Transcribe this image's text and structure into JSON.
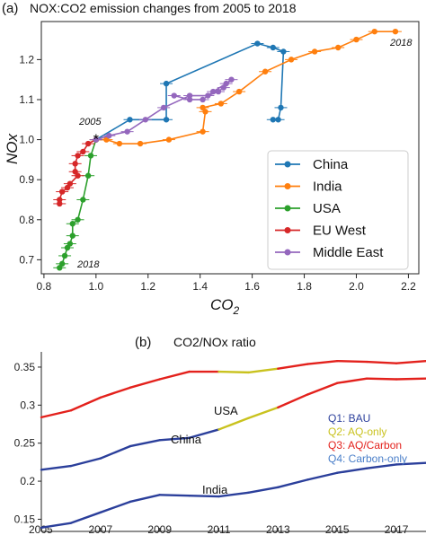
{
  "chart_data": [
    {
      "type": "scatter",
      "panel_label": "(a)",
      "title": "NOX:CO2 emission changes from 2005 to 2018",
      "xlabel": "CO",
      "xlabel_sub": "2",
      "ylabel": "NOx",
      "xlim": [
        0.79,
        2.24
      ],
      "ylim": [
        0.665,
        1.295
      ],
      "xticks": [
        0.8,
        1.0,
        1.2,
        1.4,
        1.6,
        1.8,
        2.0,
        2.2
      ],
      "xtick_labels": [
        "0.8",
        "1.0",
        "1.2",
        "1.4",
        "1.6",
        "1.8",
        "2.0",
        "2.2"
      ],
      "yticks": [
        0.7,
        0.8,
        0.9,
        1.0,
        1.1,
        1.2
      ],
      "ytick_labels": [
        "0.7",
        "0.8",
        "0.9",
        "1.0",
        "1.1",
        "1.2"
      ],
      "annotations": [
        {
          "text": "2005",
          "x": 0.98,
          "y": 1.0
        },
        {
          "text": "2018",
          "x": 2.15,
          "y": 1.27
        },
        {
          "text": "2018",
          "x": 0.86,
          "y": 0.68
        }
      ],
      "origin_marker": "*",
      "legend_position": "lower-right",
      "series": [
        {
          "name": "China",
          "color": "#1f77b4",
          "x": [
            1.0,
            1.13,
            1.27,
            1.27,
            1.62,
            1.68,
            1.72,
            1.71,
            1.7,
            1.68
          ],
          "y": [
            1.0,
            1.05,
            1.05,
            1.14,
            1.24,
            1.23,
            1.22,
            1.08,
            1.05,
            1.05
          ]
        },
        {
          "name": "India",
          "color": "#ff7f0e",
          "x": [
            1.0,
            1.04,
            1.09,
            1.17,
            1.28,
            1.41,
            1.42,
            1.41,
            1.48,
            1.55,
            1.65,
            1.75,
            1.84,
            1.93,
            2.0,
            2.07,
            2.15
          ],
          "y": [
            1.0,
            1.0,
            0.99,
            0.99,
            1.0,
            1.02,
            1.07,
            1.08,
            1.09,
            1.12,
            1.17,
            1.2,
            1.22,
            1.23,
            1.25,
            1.27,
            1.27
          ]
        },
        {
          "name": "USA",
          "color": "#2ca02c",
          "x": [
            1.0,
            0.98,
            0.97,
            0.95,
            0.93,
            0.91,
            0.91,
            0.9,
            0.89,
            0.88,
            0.87,
            0.86
          ],
          "y": [
            1.0,
            0.96,
            0.91,
            0.85,
            0.8,
            0.79,
            0.76,
            0.74,
            0.73,
            0.71,
            0.69,
            0.68
          ]
        },
        {
          "name": "EU West",
          "color": "#d62728",
          "x": [
            1.0,
            0.97,
            0.95,
            0.93,
            0.92,
            0.92,
            0.93,
            0.9,
            0.89,
            0.87,
            0.86,
            0.86
          ],
          "y": [
            1.0,
            0.99,
            0.97,
            0.96,
            0.94,
            0.92,
            0.91,
            0.89,
            0.88,
            0.87,
            0.85,
            0.84
          ]
        },
        {
          "name": "Middle East",
          "color": "#9467bd",
          "x": [
            1.0,
            1.05,
            1.12,
            1.19,
            1.26,
            1.36,
            1.43,
            1.47,
            1.49,
            1.52,
            1.5,
            1.45,
            1.41,
            1.36,
            1.3
          ],
          "y": [
            1.0,
            1.01,
            1.02,
            1.05,
            1.08,
            1.11,
            1.11,
            1.12,
            1.13,
            1.15,
            1.14,
            1.12,
            1.1,
            1.1,
            1.11
          ]
        }
      ]
    },
    {
      "type": "line",
      "panel_label": "(b)",
      "title": "CO2/NOx ratio",
      "xlim": [
        2005,
        2018
      ],
      "ylim": [
        0.134,
        0.37
      ],
      "xticks": [
        2005,
        2007,
        2009,
        2011,
        2013,
        2015,
        2017
      ],
      "xtick_labels": [
        "2005",
        "2007",
        "2009",
        "2011",
        "2013",
        "2015",
        "2017"
      ],
      "yticks": [
        0.15,
        0.2,
        0.25,
        0.3,
        0.35
      ],
      "ytick_labels": [
        "0.15",
        "0.2",
        "0.25",
        "0.3",
        "0.35"
      ],
      "x": [
        2005,
        2006,
        2007,
        2008,
        2009,
        2010,
        2011,
        2012,
        2013,
        2014,
        2015,
        2016,
        2017,
        2018
      ],
      "series": [
        {
          "name": "USA",
          "values": [
            0.284,
            0.293,
            0.31,
            0.323,
            0.334,
            0.344,
            0.344,
            0.343,
            0.348,
            0.354,
            0.358,
            0.357,
            0.355,
            0.358
          ]
        },
        {
          "name": "China",
          "values": [
            0.215,
            0.22,
            0.23,
            0.246,
            0.254,
            0.257,
            0.268,
            0.283,
            0.297,
            0.314,
            0.329,
            0.335,
            0.334,
            0.335
          ]
        },
        {
          "name": "India",
          "values": [
            0.139,
            0.145,
            0.159,
            0.173,
            0.182,
            0.181,
            0.18,
            0.185,
            0.192,
            0.202,
            0.211,
            0.217,
            0.222,
            0.224
          ]
        }
      ],
      "quadrant_segments": [
        {
          "from": 2005,
          "to": 2011,
          "quadrant": "Q1"
        },
        {
          "from": 2011,
          "to": 2013,
          "quadrant": "Q2"
        },
        {
          "from": 2013,
          "to": 2018,
          "quadrant": "Q3"
        }
      ],
      "india_segment_quadrant": "Q1",
      "legend": [
        {
          "label": "Q1: BAU",
          "color": "#2b3f9b"
        },
        {
          "label": "Q2: AQ-only",
          "color": "#c9c21e"
        },
        {
          "label": "Q3: AQ/Carbon",
          "color": "#e3211c"
        },
        {
          "label": "Q4: Carbon-only",
          "color": "#4a7fc9"
        }
      ],
      "line_labels": [
        {
          "text": "USA",
          "x": 2011.5,
          "y": 0.327
        },
        {
          "text": "China",
          "x": 2009.4,
          "y": 0.238
        },
        {
          "text": "India",
          "x": 2010.8,
          "y": 0.165
        }
      ]
    }
  ]
}
